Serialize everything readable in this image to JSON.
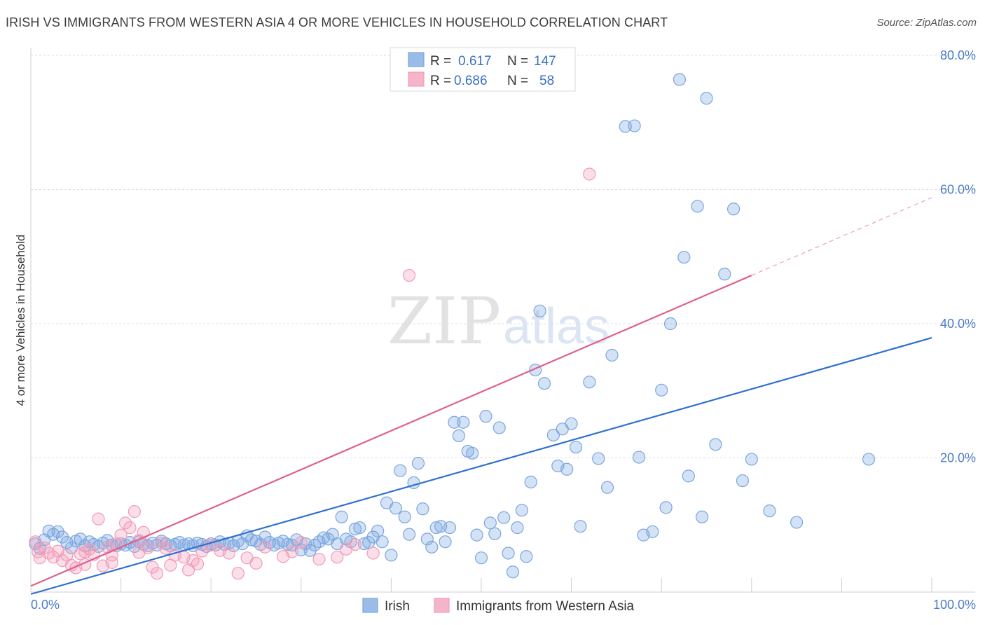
{
  "header": {
    "title": "IRISH VS IMMIGRANTS FROM WESTERN ASIA 4 OR MORE VEHICLES IN HOUSEHOLD CORRELATION CHART",
    "source": "Source: ZipAtlas.com"
  },
  "watermark": {
    "zip": "ZIP",
    "atlas": "atlas"
  },
  "legend": {
    "r_label": "R =",
    "n_label": "N =",
    "rows": [
      {
        "r": "0.617",
        "n": "147",
        "color": "#a9c6ee"
      },
      {
        "r": "0.686",
        "n": "58",
        "color": "#f6b6c9"
      }
    ]
  },
  "chart_data": {
    "type": "scatter",
    "ylabel": "4 or more Vehicles in Household",
    "xlim": [
      0,
      100
    ],
    "ylim": [
      0,
      80
    ],
    "x_tick_labels": [
      "0.0%",
      "100.0%"
    ],
    "y_ticks": [
      {
        "value": 20,
        "label": "20.0%"
      },
      {
        "value": 40,
        "label": "40.0%"
      },
      {
        "value": 60,
        "label": "60.0%"
      },
      {
        "value": 80,
        "label": "80.0%"
      }
    ],
    "grid": "horizontal dashed",
    "series": [
      {
        "name": "Irish",
        "color": "#7aa6e0",
        "line_color": "#2f6fd1",
        "trend": {
          "x0": 0,
          "y0": -0.3,
          "x1": 100,
          "y1": 37.9
        },
        "points": [
          [
            0.5,
            7.2
          ],
          [
            1,
            6.5
          ],
          [
            1.5,
            7.8
          ],
          [
            2,
            9.1
          ],
          [
            2.5,
            8.6
          ],
          [
            3,
            9
          ],
          [
            3.5,
            8.2
          ],
          [
            4,
            7.4
          ],
          [
            4.5,
            6.6
          ],
          [
            5,
            7.6
          ],
          [
            5.5,
            7.9
          ],
          [
            6,
            6.9
          ],
          [
            6.5,
            7.5
          ],
          [
            7,
            7.1
          ],
          [
            7.5,
            6.8
          ],
          [
            8,
            7.3
          ],
          [
            8.5,
            7.7
          ],
          [
            9,
            7.0
          ],
          [
            9.5,
            6.9
          ],
          [
            10,
            7.2
          ],
          [
            10.5,
            7.0
          ],
          [
            11,
            7.4
          ],
          [
            11.5,
            6.8
          ],
          [
            12,
            7.5
          ],
          [
            12.5,
            7.1
          ],
          [
            13,
            6.9
          ],
          [
            13.5,
            7.3
          ],
          [
            14,
            7.0
          ],
          [
            14.5,
            7.6
          ],
          [
            15,
            7.2
          ],
          [
            15.5,
            6.9
          ],
          [
            16,
            7.1
          ],
          [
            16.5,
            7.4
          ],
          [
            17,
            7.0
          ],
          [
            17.5,
            7.2
          ],
          [
            18,
            6.9
          ],
          [
            18.5,
            7.3
          ],
          [
            19,
            7.1
          ],
          [
            19.5,
            6.8
          ],
          [
            20,
            7.2
          ],
          [
            20.5,
            7.0
          ],
          [
            21,
            7.5
          ],
          [
            21.5,
            7.1
          ],
          [
            22,
            7.3
          ],
          [
            22.5,
            6.9
          ],
          [
            23,
            7.6
          ],
          [
            23.5,
            7.2
          ],
          [
            24,
            8.4
          ],
          [
            24.5,
            7.8
          ],
          [
            25,
            7.6
          ],
          [
            25.5,
            7.1
          ],
          [
            26,
            8.2
          ],
          [
            26.5,
            7.4
          ],
          [
            27,
            7.0
          ],
          [
            27.5,
            7.3
          ],
          [
            28,
            7.6
          ],
          [
            28.5,
            7.1
          ],
          [
            29,
            7.0
          ],
          [
            29.5,
            7.8
          ],
          [
            30,
            6.3
          ],
          [
            30.5,
            7.2
          ],
          [
            31,
            6.2
          ],
          [
            31.5,
            7.0
          ],
          [
            32,
            7.5
          ],
          [
            32.5,
            8.1
          ],
          [
            33,
            7.9
          ],
          [
            33.5,
            8.6
          ],
          [
            34,
            7.2
          ],
          [
            34.5,
            11.2
          ],
          [
            35,
            7.9
          ],
          [
            35.5,
            7.5
          ],
          [
            36,
            9.4
          ],
          [
            36.5,
            9.6
          ],
          [
            37,
            7.2
          ],
          [
            37.5,
            7.4
          ],
          [
            38,
            8.2
          ],
          [
            38.5,
            9.1
          ],
          [
            39,
            7.5
          ],
          [
            39.5,
            13.3
          ],
          [
            40,
            5.5
          ],
          [
            40.5,
            12.5
          ],
          [
            41,
            18.1
          ],
          [
            41.5,
            11.2
          ],
          [
            42,
            8.6
          ],
          [
            42.5,
            16.3
          ],
          [
            43,
            19.2
          ],
          [
            43.5,
            12.4
          ],
          [
            44,
            7.9
          ],
          [
            44.5,
            6.7
          ],
          [
            45,
            9.6
          ],
          [
            45.5,
            9.8
          ],
          [
            46,
            7.5
          ],
          [
            46.5,
            9.6
          ],
          [
            47,
            25.3
          ],
          [
            47.5,
            23.3
          ],
          [
            48,
            25.3
          ],
          [
            48.5,
            21.0
          ],
          [
            49,
            20.7
          ],
          [
            49.5,
            8.5
          ],
          [
            50,
            5.1
          ],
          [
            50.5,
            26.2
          ],
          [
            51,
            10.3
          ],
          [
            51.5,
            8.7
          ],
          [
            52,
            24.5
          ],
          [
            52.5,
            11.1
          ],
          [
            53,
            5.8
          ],
          [
            53.5,
            3.0
          ],
          [
            54,
            9.6
          ],
          [
            54.5,
            12.2
          ],
          [
            55,
            5.3
          ],
          [
            55.5,
            16.4
          ],
          [
            56,
            33.1
          ],
          [
            56.5,
            41.9
          ],
          [
            57,
            31.1
          ],
          [
            58,
            23.4
          ],
          [
            58.5,
            18.8
          ],
          [
            59,
            24.3
          ],
          [
            59.5,
            18.3
          ],
          [
            60,
            25.1
          ],
          [
            60.5,
            21.6
          ],
          [
            61,
            9.8
          ],
          [
            62,
            31.3
          ],
          [
            63,
            19.9
          ],
          [
            64,
            15.6
          ],
          [
            64.5,
            35.3
          ],
          [
            66,
            69.4
          ],
          [
            67,
            69.5
          ],
          [
            67.5,
            20.1
          ],
          [
            68,
            8.5
          ],
          [
            69,
            9.0
          ],
          [
            70,
            30.1
          ],
          [
            70.5,
            12.6
          ],
          [
            71,
            40.0
          ],
          [
            72,
            76.4
          ],
          [
            72.5,
            49.9
          ],
          [
            73,
            17.3
          ],
          [
            74,
            57.5
          ],
          [
            74.5,
            11.2
          ],
          [
            75,
            73.6
          ],
          [
            76,
            22.0
          ],
          [
            77,
            47.4
          ],
          [
            78,
            57.1
          ],
          [
            79,
            16.6
          ],
          [
            80,
            19.8
          ],
          [
            82,
            12.1
          ],
          [
            85,
            10.4
          ],
          [
            93,
            19.8
          ]
        ]
      },
      {
        "name": "Immigrants from Western Asia",
        "color": "#f29bb7",
        "line_color": "#e0608a",
        "trend": {
          "x0": 0,
          "y0": 0.9,
          "x1": 80,
          "y1": 47.2
        },
        "trend_ext": {
          "x0": 80,
          "y0": 47.2,
          "x1": 100,
          "y1": 58.8
        },
        "points": [
          [
            0.5,
            7.5
          ],
          [
            0.8,
            6.0
          ],
          [
            1,
            5.1
          ],
          [
            1.5,
            6.6
          ],
          [
            2,
            5.8
          ],
          [
            2.5,
            5.2
          ],
          [
            3,
            6.1
          ],
          [
            3.5,
            4.7
          ],
          [
            4,
            5.5
          ],
          [
            4.5,
            4.0
          ],
          [
            5,
            3.6
          ],
          [
            5.5,
            5.7
          ],
          [
            6,
            4.1
          ],
          [
            6.5,
            6.4
          ],
          [
            7,
            5.6
          ],
          [
            7.5,
            10.9
          ],
          [
            8,
            3.9
          ],
          [
            8.5,
            6.7
          ],
          [
            9,
            4.4
          ],
          [
            9.5,
            7.2
          ],
          [
            10,
            8.5
          ],
          [
            10.5,
            10.3
          ],
          [
            11,
            9.6
          ],
          [
            11.5,
            12.0
          ],
          [
            12,
            7.7
          ],
          [
            12.5,
            8.9
          ],
          [
            13,
            6.6
          ],
          [
            13.5,
            3.7
          ],
          [
            14,
            2.8
          ],
          [
            14.5,
            7.3
          ],
          [
            15,
            6.5
          ],
          [
            15.5,
            4.0
          ],
          [
            16,
            5.5
          ],
          [
            17,
            5.2
          ],
          [
            17.5,
            3.3
          ],
          [
            18,
            4.7
          ],
          [
            18.5,
            4.2
          ],
          [
            19,
            6.1
          ],
          [
            20,
            7.0
          ],
          [
            21,
            6.2
          ],
          [
            22,
            5.8
          ],
          [
            23,
            2.8
          ],
          [
            24,
            5.1
          ],
          [
            25,
            4.3
          ],
          [
            26,
            6.7
          ],
          [
            28,
            5.3
          ],
          [
            29,
            6.0
          ],
          [
            30,
            7.4
          ],
          [
            32,
            4.9
          ],
          [
            34,
            5.2
          ],
          [
            35,
            6.4
          ],
          [
            36,
            7.1
          ],
          [
            38,
            5.8
          ],
          [
            42,
            47.2
          ],
          [
            62,
            62.3
          ],
          [
            6,
            6.0
          ],
          [
            9,
            5.5
          ],
          [
            12,
            5.9
          ]
        ]
      }
    ]
  }
}
